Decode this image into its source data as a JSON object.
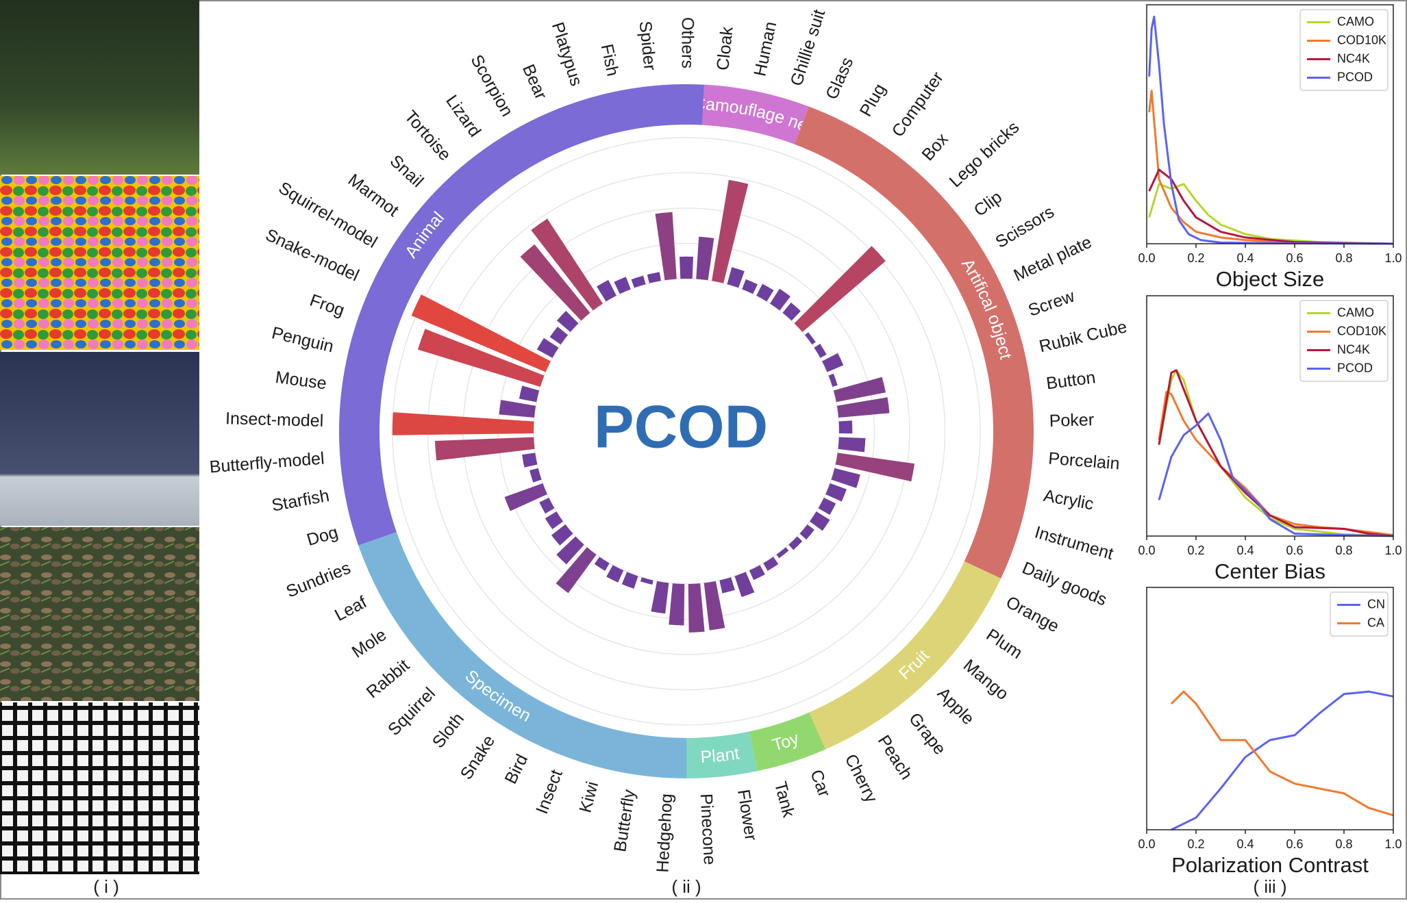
{
  "panels": [
    "( i )",
    "( ii )",
    "( iii )"
  ],
  "chart_data": [
    {
      "type": "polar_bar",
      "title": "PCOD",
      "categories": [
        "Cloak",
        "Human",
        "Ghillie suit",
        "Glass",
        "Plug",
        "Computer",
        "Box",
        "Lego bricks",
        "Clip",
        "Scissors",
        "Metal plate",
        "Screw",
        "Rubik Cube",
        "Button",
        "Poker",
        "Porcelain",
        "Acrylic",
        "Instrument",
        "Daily goods",
        "Orange",
        "Plum",
        "Mango",
        "Apple",
        "Grape",
        "Peach",
        "Cherry",
        "Car",
        "Tank",
        "Flower",
        "Pinecone",
        "Hedgehog",
        "Butterfly",
        "Kiwi",
        "Insect",
        "Bird",
        "Snake",
        "Sloth",
        "Squirrel",
        "Rabbit",
        "Mole",
        "Leaf",
        "Sundries",
        "Dog",
        "Starfish",
        "Butterfly-model",
        "Insect-model",
        "Mouse",
        "Penguin",
        "Frog",
        "Snake-model",
        "Squirrel-model",
        "Marmot",
        "Snail",
        "Tortoise",
        "Lizard",
        "Scorpion",
        "Bear",
        "Platypus",
        "Fish",
        "Spider",
        "Others"
      ],
      "category_group": [
        "Camouflage net",
        "Camouflage net",
        "Camouflage net",
        "Artifical object",
        "Artifical object",
        "Artifical object",
        "Artifical object",
        "Artifical object",
        "Artifical object",
        "Artifical object",
        "Artifical object",
        "Artifical object",
        "Artifical object",
        "Artifical object",
        "Artifical object",
        "Artifical object",
        "Artifical object",
        "Artifical object",
        "Artifical object",
        "Fruit",
        "Fruit",
        "Fruit",
        "Fruit",
        "Fruit",
        "Fruit",
        "Fruit",
        "Toy",
        "Toy",
        "Plant",
        "Plant",
        "Specimen",
        "Specimen",
        "Specimen",
        "Specimen",
        "Specimen",
        "Specimen",
        "Specimen",
        "Specimen",
        "Specimen",
        "Specimen",
        "Specimen",
        "Specimen",
        "Animal",
        "Animal",
        "Animal",
        "Animal",
        "Animal",
        "Animal",
        "Animal",
        "Animal",
        "Animal",
        "Animal",
        "Animal",
        "Animal",
        "Animal",
        "Animal",
        "Animal",
        "Animal",
        "Animal",
        "Animal",
        "Animal"
      ],
      "groups": [
        {
          "name": "Camouflage net",
          "color": "#cf76d2"
        },
        {
          "name": "Artifical object",
          "color": "#d4706a"
        },
        {
          "name": "Fruit",
          "color": "#dcd477"
        },
        {
          "name": "Toy",
          "color": "#93d86e"
        },
        {
          "name": "Plant",
          "color": "#80d8c1"
        },
        {
          "name": "Specimen",
          "color": "#7ab5d9"
        },
        {
          "name": "Animal",
          "color": "#7a6bd6"
        }
      ],
      "values": [
        48,
        116,
        20,
        12,
        15,
        20,
        15,
        124,
        5,
        8,
        20,
        6,
        57,
        58,
        15,
        30,
        88,
        30,
        20,
        15,
        18,
        10,
        8,
        5,
        10,
        12,
        25,
        15,
        54,
        55,
        47,
        35,
        5,
        15,
        15,
        10,
        54,
        30,
        20,
        15,
        12,
        46,
        10,
        15,
        112,
        160,
        40,
        20,
        145,
        165,
        20,
        15,
        20,
        100,
        115,
        20,
        15,
        10,
        10,
        76,
        25
      ],
      "rlim": [
        0,
        170
      ],
      "rticks": [
        0,
        40,
        80,
        120,
        160
      ],
      "grid": true,
      "color_low": "#6b3fa0",
      "color_high": "#e8473a"
    },
    {
      "type": "line",
      "title": "Object Size",
      "xlim": [
        0,
        1
      ],
      "ylim": [
        0,
        100
      ],
      "xticks": [
        {
          "value": 0,
          "label": "0.0"
        },
        0.2,
        0.4,
        0.6,
        0.8,
        {
          "value": 1,
          "label": "1.0"
        }
      ],
      "legend": "upper right",
      "series": [
        {
          "name": "CAMO",
          "color": "#b5d62c",
          "x": [
            0.01,
            0.05,
            0.1,
            0.15,
            0.2,
            0.25,
            0.3,
            0.4,
            0.5,
            0.7,
            1.0
          ],
          "values": [
            11,
            25,
            23,
            25,
            18,
            12,
            8,
            4,
            2,
            0.7,
            0
          ]
        },
        {
          "name": "COD10K",
          "color": "#f07a2e",
          "x": [
            0.01,
            0.02,
            0.05,
            0.1,
            0.15,
            0.2,
            0.3,
            0.4,
            0.6,
            1.0
          ],
          "values": [
            55,
            64,
            27,
            15,
            9,
            5,
            2.6,
            1.5,
            0.4,
            0
          ]
        },
        {
          "name": "NC4K",
          "color": "#b5173d",
          "x": [
            0.01,
            0.05,
            0.1,
            0.15,
            0.2,
            0.3,
            0.4,
            0.6,
            0.8,
            1.0
          ],
          "values": [
            22,
            31,
            27,
            18,
            11,
            5,
            2.6,
            0.7,
            0.3,
            0
          ]
        },
        {
          "name": "PCOD",
          "color": "#5b62f0",
          "x": [
            0.01,
            0.02,
            0.03,
            0.05,
            0.07,
            0.1,
            0.13,
            0.17,
            0.22,
            0.3,
            0.5,
            1.0
          ],
          "values": [
            70,
            90,
            95,
            75,
            50,
            25,
            10,
            4,
            1.5,
            0.5,
            0.2,
            0
          ]
        }
      ]
    },
    {
      "type": "line",
      "title": "Center Bias",
      "xlim": [
        0,
        1
      ],
      "ylim": [
        0,
        100
      ],
      "xticks": [
        {
          "value": 0,
          "label": "0.0"
        },
        0.2,
        0.4,
        0.6,
        0.8,
        {
          "value": 1,
          "label": "1.0"
        }
      ],
      "legend": "upper right",
      "series": [
        {
          "name": "CAMO",
          "color": "#b5d62c",
          "x": [
            0.05,
            0.1,
            0.12,
            0.15,
            0.2,
            0.3,
            0.4,
            0.5,
            0.6,
            0.8,
            1.0
          ],
          "values": [
            38,
            65,
            69,
            65,
            48,
            29,
            16,
            7.5,
            3,
            0.7,
            0
          ]
        },
        {
          "name": "COD10K",
          "color": "#f07a2e",
          "x": [
            0.05,
            0.08,
            0.1,
            0.15,
            0.2,
            0.3,
            0.4,
            0.5,
            0.6,
            0.7,
            0.8,
            1.0
          ],
          "values": [
            40,
            60,
            59,
            48,
            40,
            29,
            20,
            8.6,
            5,
            3.7,
            3,
            0.4
          ]
        },
        {
          "name": "NC4K",
          "color": "#b5173d",
          "x": [
            0.05,
            0.1,
            0.12,
            0.2,
            0.3,
            0.4,
            0.5,
            0.6,
            0.8,
            0.9,
            1.0
          ],
          "values": [
            38,
            68,
            69,
            48,
            29,
            18,
            8.6,
            3.7,
            3,
            1,
            0
          ]
        },
        {
          "name": "PCOD",
          "color": "#5b62f0",
          "x": [
            0.05,
            0.1,
            0.15,
            0.2,
            0.25,
            0.3,
            0.35,
            0.4,
            0.45,
            0.5,
            0.6,
            0.8,
            1.0
          ],
          "values": [
            15,
            33,
            42,
            46,
            51,
            40,
            24,
            19,
            14,
            7,
            1,
            0.4,
            0
          ]
        }
      ]
    },
    {
      "type": "line",
      "title": "Polarization Contrast",
      "xlim": [
        0,
        1
      ],
      "ylim": [
        0,
        100
      ],
      "xticks": [
        {
          "value": 0,
          "label": "0.0"
        },
        0.2,
        0.4,
        0.6,
        0.8,
        {
          "value": 1,
          "label": "1.0"
        }
      ],
      "legend": "upper right",
      "series": [
        {
          "name": "CN",
          "color": "#5b62f0",
          "x": [
            0.1,
            0.2,
            0.3,
            0.4,
            0.5,
            0.6,
            0.7,
            0.8,
            0.9,
            1.0
          ],
          "values": [
            0,
            5,
            17,
            30,
            37,
            39,
            48,
            56,
            57,
            55
          ]
        },
        {
          "name": "CA",
          "color": "#f07a2e",
          "x": [
            0.1,
            0.15,
            0.2,
            0.3,
            0.4,
            0.5,
            0.6,
            0.8,
            0.9,
            1.0
          ],
          "values": [
            52,
            57,
            52,
            37,
            37,
            24,
            19,
            15,
            9,
            6
          ]
        }
      ]
    }
  ]
}
